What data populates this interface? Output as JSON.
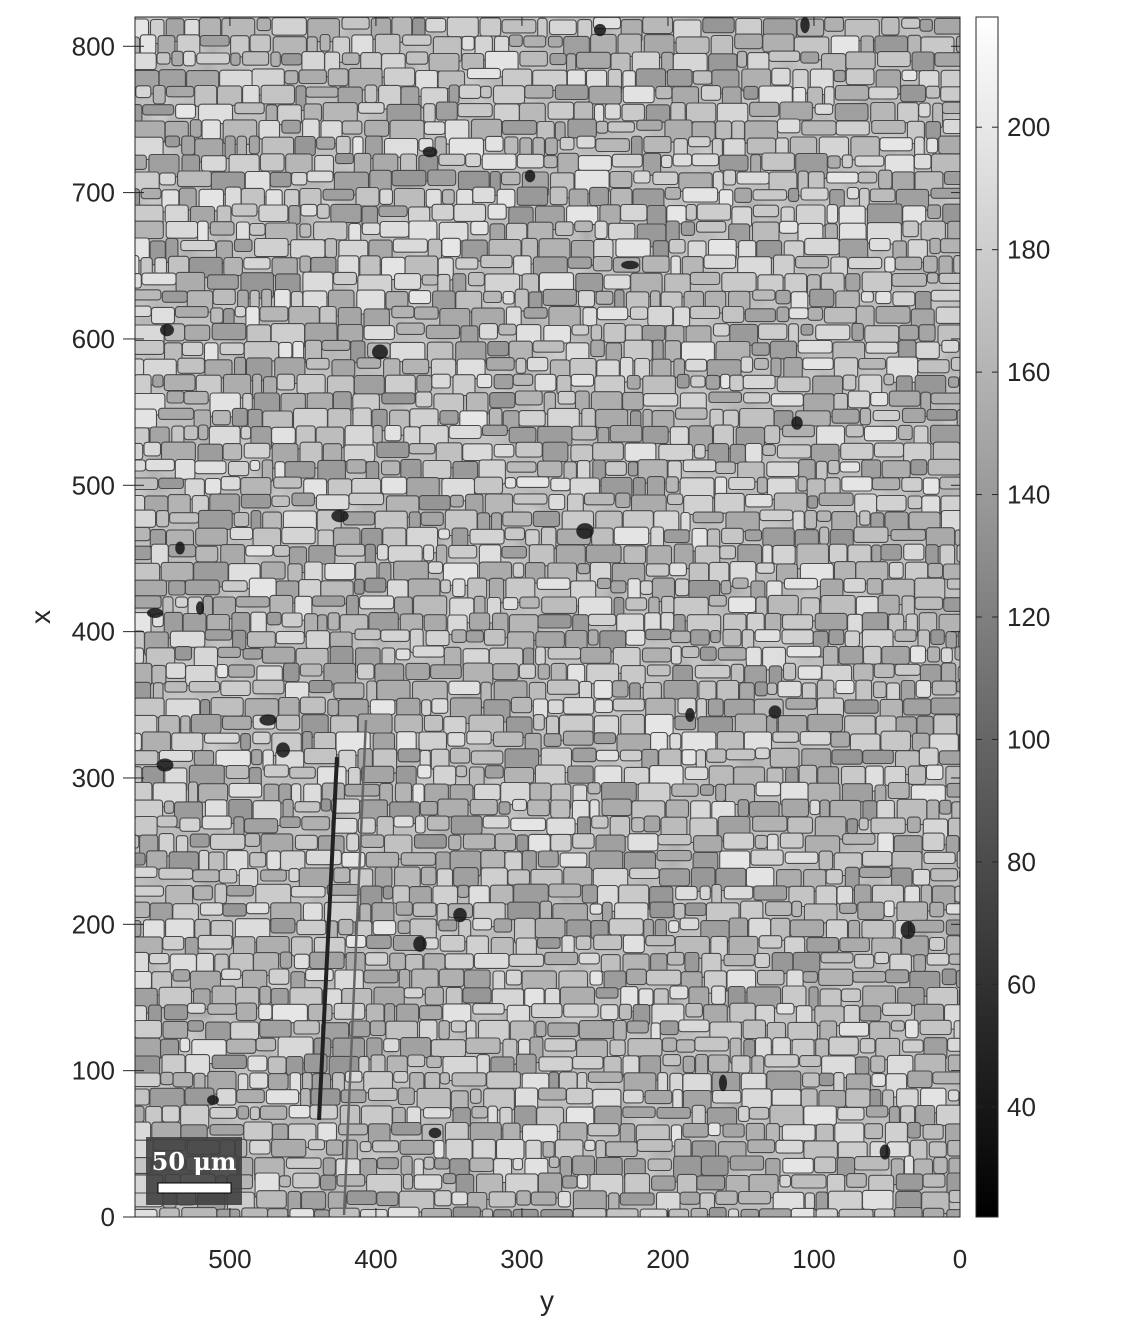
{
  "chart_data": {
    "type": "heatmap",
    "title": "",
    "description_kind": "grayscale grain microstructure image",
    "xlabel": "y",
    "ylabel": "x",
    "xlim": [
      565,
      0
    ],
    "ylim": [
      0,
      820
    ],
    "x_ticks": [
      500,
      400,
      300,
      200,
      100,
      0
    ],
    "x_tick_labels": [
      "500",
      "400",
      "300",
      "200",
      "100",
      "0"
    ],
    "y_ticks": [
      0,
      100,
      200,
      300,
      400,
      500,
      600,
      700,
      800
    ],
    "y_tick_labels": [
      "0",
      "100",
      "200",
      "300",
      "400",
      "500",
      "600",
      "700",
      "800"
    ],
    "colorbar": {
      "colormap": "gray",
      "range": [
        22,
        218
      ],
      "ticks": [
        40,
        60,
        80,
        100,
        120,
        140,
        160,
        180,
        200
      ],
      "tick_labels": [
        "40",
        "60",
        "80",
        "100",
        "120",
        "140",
        "160",
        "180",
        "200"
      ]
    },
    "scale_bar": {
      "label": "50 μm",
      "length_um": 50
    },
    "colors": {
      "boundary": "#4a4a4a",
      "grain_light": "#dcdcdc",
      "grain_dark": "#8a8a8a",
      "pore": "#151515"
    }
  }
}
